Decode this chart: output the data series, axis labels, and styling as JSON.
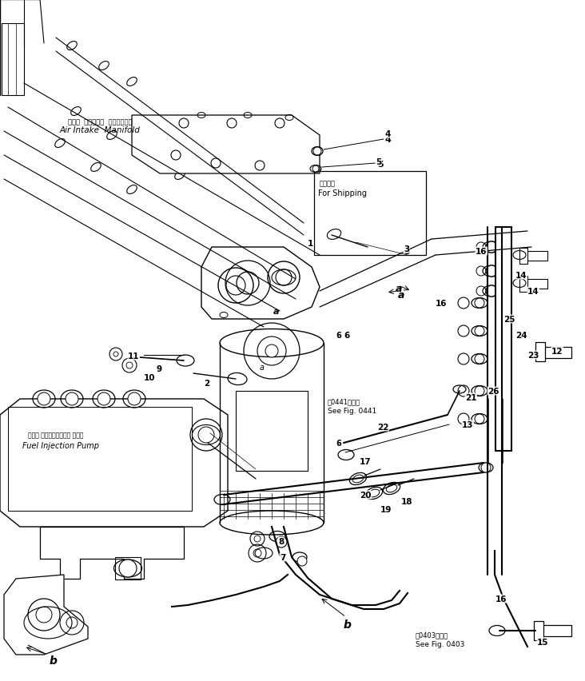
{
  "bg_color": "#ffffff",
  "fig_width": 7.32,
  "fig_height": 8.53,
  "dpi": 100,
  "labels": {
    "air_intake_jp": "エアー  インテーク  マニホールド",
    "air_intake_en": "Air Intake  Manifold",
    "fuel_injection_jp": "フェル インジェクション ポンプ",
    "fuel_injection_en": "Fuel Injection Pump",
    "for_shipping_jp": "運損部品",
    "for_shipping_en": "For Shipping",
    "see_0441_jp": "図0441図参照",
    "see_0441_en": "See Fig. 0441",
    "see_0403_jp": "図0403図参照",
    "see_0403_en": "See Fig. 0403"
  },
  "line_color": "#000000",
  "text_color": "#000000"
}
